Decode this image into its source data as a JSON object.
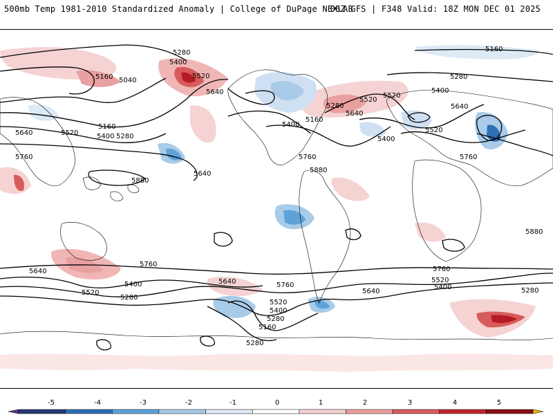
{
  "header": {
    "title": "500mb Temp 1981-2010 Standardized Anomaly | College of DuPage NEXLAB",
    "run_info": "06Z GFS | F348 Valid: 18Z MON DEC 01 2025"
  },
  "colorbar": {
    "ticks": [
      "-5",
      "-4",
      "-3",
      "-2",
      "-1",
      "0",
      "1",
      "2",
      "3",
      "4",
      "5"
    ],
    "colors": [
      "#5a2f8a",
      "#253a77",
      "#2e6fb5",
      "#5fa2d8",
      "#a8cbe8",
      "#dde9f5",
      "#ffffff",
      "#f5d3d3",
      "#e9a0a0",
      "#d85b5b",
      "#c0242c",
      "#8b0e14",
      "#e6b800"
    ]
  },
  "contours": {
    "labels": [
      "5280",
      "5400",
      "5520",
      "5160",
      "5040",
      "5640",
      "5280",
      "5160",
      "5400",
      "5520",
      "5640",
      "5760",
      "5880",
      "5280",
      "5400",
      "5520",
      "5640",
      "5160",
      "5400",
      "5880",
      "5760",
      "5520",
      "5640",
      "5760",
      "5160",
      "5280",
      "5400",
      "5520",
      "5640",
      "5880",
      "5640",
      "5520",
      "5400",
      "5280",
      "5760",
      "5640",
      "5760",
      "5520",
      "5400",
      "5280",
      "5160",
      "5280",
      "5640",
      "5760",
      "5520",
      "5400",
      "5280"
    ]
  }
}
